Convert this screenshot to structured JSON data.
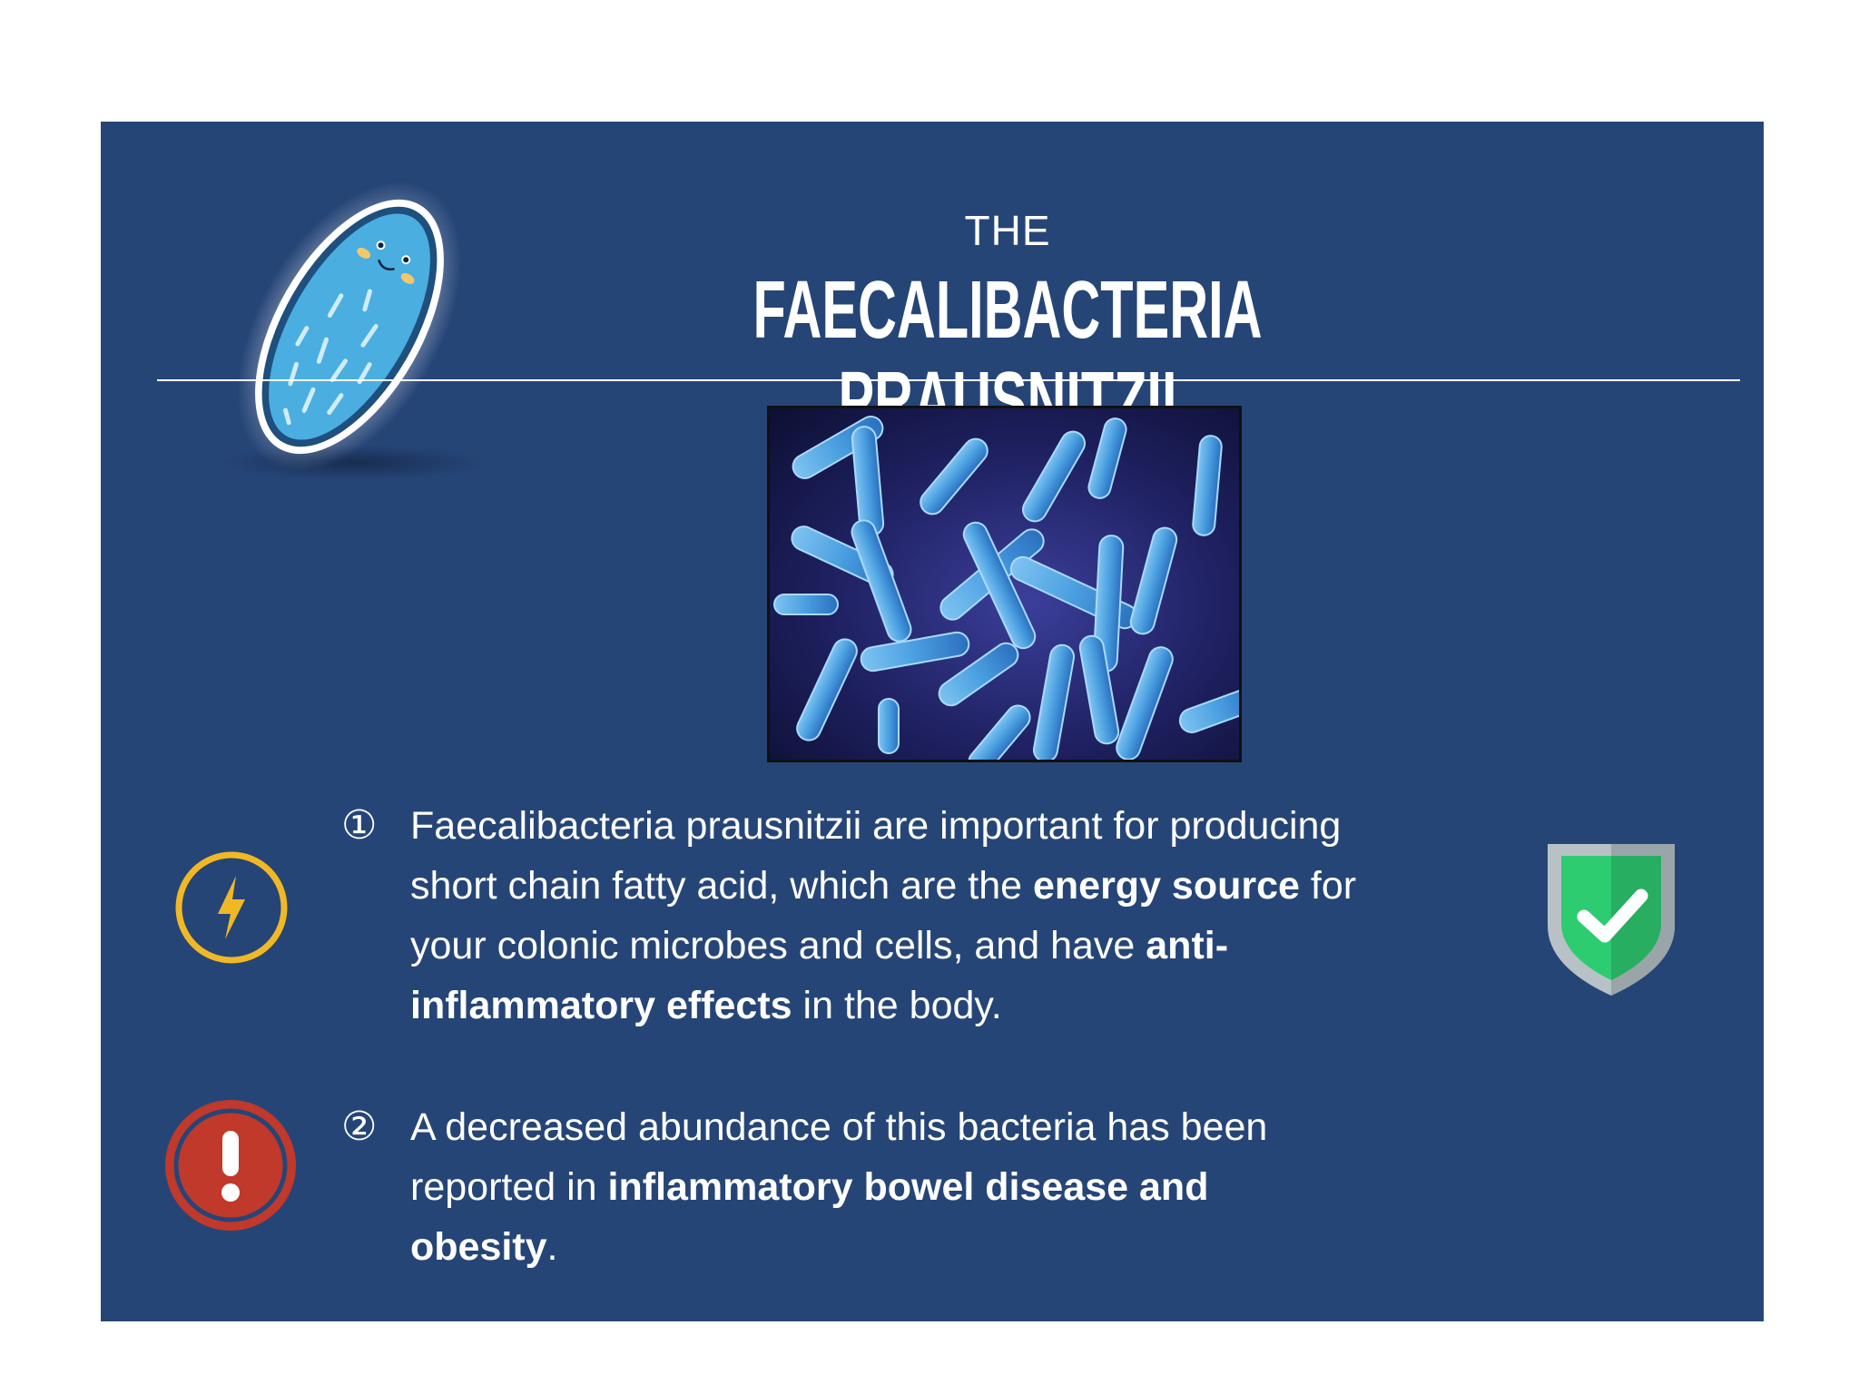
{
  "header": {
    "pre_title": "THE",
    "title": "FAECALIBACTERIA PRAUSNITZII"
  },
  "colors": {
    "panel_bg": "#264577",
    "text": "#ffffff",
    "bolt_accent": "#f1b826",
    "alert_accent": "#c0392b",
    "shield_green": "#2ecc71",
    "bacteria_blue": "#4a9fe0"
  },
  "icons": {
    "mascot": "cartoon-bacterium-icon",
    "bolt": "lightning-bolt-icon",
    "shield": "shield-check-icon",
    "alert": "exclamation-icon"
  },
  "points": [
    {
      "marker": "①",
      "lines": [
        [
          {
            "t": "Faecalibacteria prausnitzii are important for producing",
            "b": false
          }
        ],
        [
          {
            "t": "short chain fatty acid, which are the ",
            "b": false
          },
          {
            "t": "energy source",
            "b": true
          },
          {
            "t": " for",
            "b": false
          }
        ],
        [
          {
            "t": "your colonic microbes and cells, and have ",
            "b": false
          },
          {
            "t": "anti-",
            "b": true
          }
        ],
        [
          {
            "t": "inflammatory effects",
            "b": true
          },
          {
            "t": " in the body.",
            "b": false
          }
        ]
      ]
    },
    {
      "marker": "②",
      "lines": [
        [
          {
            "t": "A decreased abundance of this bacteria has been",
            "b": false
          }
        ],
        [
          {
            "t": "reported in ",
            "b": false
          },
          {
            "t": "inflammatory bowel disease and",
            "b": true
          }
        ],
        [
          {
            "t": "obesity",
            "b": true
          },
          {
            "t": ".",
            "b": false
          }
        ]
      ]
    }
  ]
}
